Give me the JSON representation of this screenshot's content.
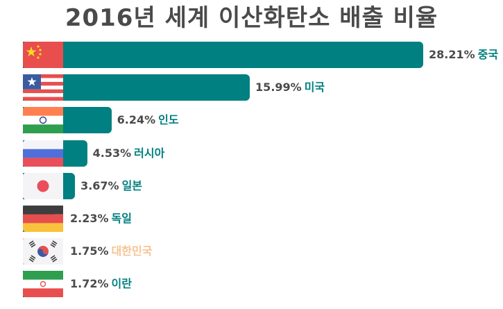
{
  "chart_data": {
    "type": "bar",
    "orientation": "horizontal",
    "title": "2016년 세계 이산화탄소 배출 비율",
    "categories": [
      "중국",
      "미국",
      "인도",
      "러시아",
      "일본",
      "독일",
      "대한민국",
      "이란"
    ],
    "values": [
      28.21,
      15.99,
      6.24,
      4.53,
      3.67,
      2.23,
      1.75,
      1.72
    ],
    "value_labels": [
      "28.21%",
      "15.99%",
      "6.24%",
      "4.53%",
      "3.67%",
      "2.23%",
      "1.75%",
      "1.72%"
    ],
    "flags": [
      "china-flag-icon",
      "usa-flag-icon",
      "india-flag-icon",
      "russia-flag-icon",
      "japan-flag-icon",
      "germany-flag-icon",
      "korea-flag-icon",
      "iran-flag-icon"
    ],
    "bar_color": "#008080",
    "highlight_color": "#F8C291",
    "highlight_category": "대한민국",
    "text_color": "#4A4A4A",
    "grid": false,
    "legend": "none"
  }
}
